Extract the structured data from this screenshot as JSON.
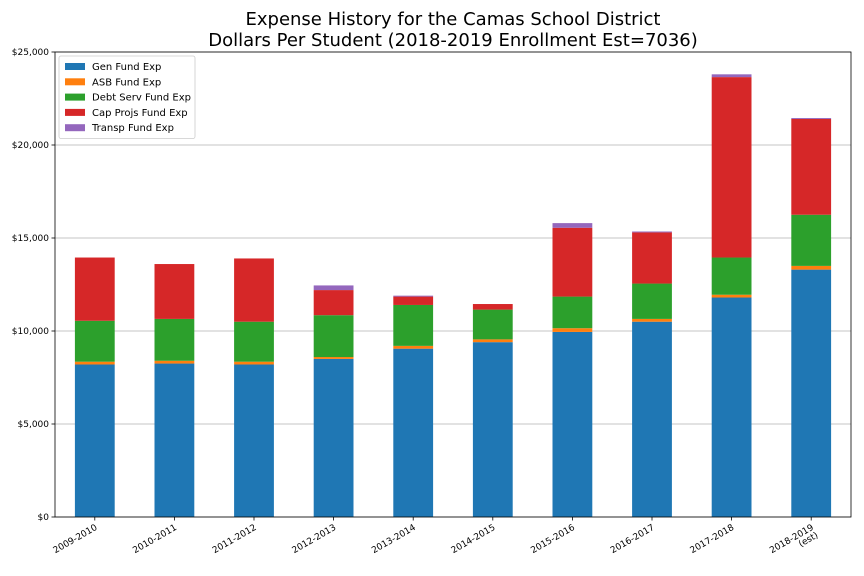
{
  "chart_data": {
    "type": "bar",
    "stacked": true,
    "title_lines": [
      "Expense History for the Camas School District",
      "Dollars Per Student (2018-2019 Enrollment Est=7036)"
    ],
    "xlabel": "",
    "ylabel": "",
    "ylim": [
      0,
      25000
    ],
    "yticks": [
      {
        "value": 0,
        "label": "$0"
      },
      {
        "value": 5000,
        "label": "$5,000"
      },
      {
        "value": 10000,
        "label": "$10,000"
      },
      {
        "value": 15000,
        "label": "$15,000"
      },
      {
        "value": 20000,
        "label": "$20,000"
      },
      {
        "value": 25000,
        "label": "$25,000"
      }
    ],
    "grid": "horizontal",
    "legend_position": "top-left",
    "categories": [
      [
        "2009-2010"
      ],
      [
        "2010-2011"
      ],
      [
        "2011-2012"
      ],
      [
        "2012-2013"
      ],
      [
        "2013-2014"
      ],
      [
        "2014-2015"
      ],
      [
        "2015-2016"
      ],
      [
        "2016-2017"
      ],
      [
        "2017-2018"
      ],
      [
        "2018-2019",
        "(est)"
      ]
    ],
    "series": [
      {
        "name": "Gen Fund Exp",
        "color": "#1f77b4",
        "values": [
          8200,
          8250,
          8200,
          8500,
          9050,
          9400,
          9950,
          10500,
          11800,
          13300
        ]
      },
      {
        "name": "ASB Fund Exp",
        "color": "#ff7f0e",
        "values": [
          150,
          150,
          150,
          100,
          150,
          150,
          200,
          150,
          150,
          200
        ]
      },
      {
        "name": "Debt Serv Fund Exp",
        "color": "#2ca02c",
        "values": [
          2200,
          2250,
          2150,
          2250,
          2200,
          1600,
          1700,
          1900,
          2000,
          2750
        ]
      },
      {
        "name": "Cap Projs Fund Exp",
        "color": "#d62728",
        "values": [
          3400,
          2950,
          3400,
          1350,
          450,
          300,
          3700,
          2750,
          9700,
          5150
        ]
      },
      {
        "name": "Transp Fund Exp",
        "color": "#9467bd",
        "values": [
          0,
          0,
          0,
          250,
          50,
          0,
          250,
          50,
          150,
          50
        ]
      }
    ]
  }
}
